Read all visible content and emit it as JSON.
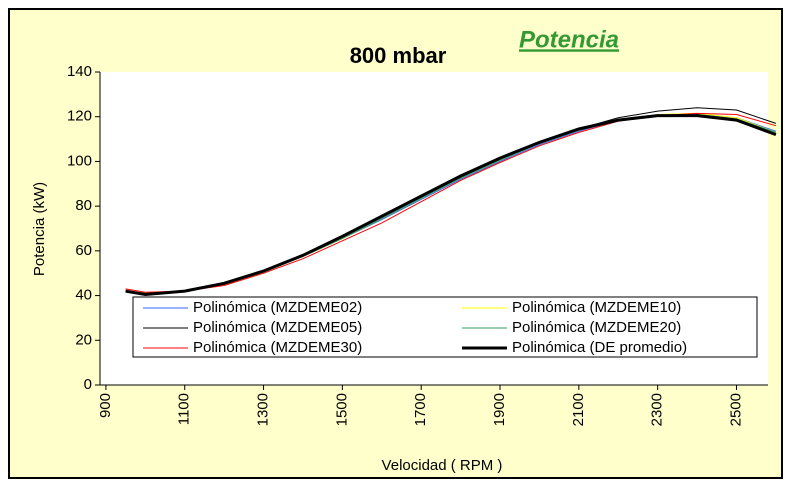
{
  "chart_data": {
    "type": "line",
    "title": "800 mbar",
    "annotation": "Potencia",
    "xlabel": "Velocidad ( RPM )",
    "ylabel": "Potencia (kW)",
    "x": [
      950,
      1000,
      1100,
      1200,
      1300,
      1400,
      1500,
      1600,
      1700,
      1800,
      1900,
      2000,
      2100,
      2200,
      2300,
      2400,
      2500,
      2600
    ],
    "series": [
      {
        "name": "Polinómica (MZDEME02)",
        "color": "#3366ff",
        "width": 1,
        "values": [
          42,
          41,
          42,
          45,
          50.5,
          57.5,
          65.5,
          74,
          83,
          92,
          100,
          107.5,
          113.5,
          118.5,
          121,
          121,
          119.5,
          113.5
        ]
      },
      {
        "name": "Polinómica (MZDEME10)",
        "color": "#ffff00",
        "width": 1,
        "values": [
          42,
          41,
          42,
          45,
          50.5,
          57.5,
          65.5,
          74.5,
          83.5,
          92.5,
          100.5,
          108,
          114,
          118.5,
          121,
          121.5,
          119.5,
          113
        ]
      },
      {
        "name": "Polinómica (MZDEME05)",
        "color": "#000000",
        "width": 1,
        "values": [
          42,
          40.5,
          42,
          45.5,
          51,
          58,
          66,
          75,
          84,
          93,
          101,
          108.5,
          114.5,
          119.5,
          122.5,
          124,
          123,
          117
        ]
      },
      {
        "name": "Polinómica (MZDEME20)",
        "color": "#339966",
        "width": 1,
        "values": [
          42,
          41,
          42,
          45,
          50.5,
          57.5,
          65.5,
          74.5,
          83.5,
          92.5,
          100.5,
          108,
          114,
          118.5,
          120.5,
          121,
          119,
          113
        ]
      },
      {
        "name": "Polinómica (MZDEME30)",
        "color": "#ff0000",
        "width": 1,
        "values": [
          43,
          41.5,
          42,
          44.5,
          50,
          56.5,
          64.5,
          72.5,
          82,
          91.5,
          99.5,
          107,
          113,
          118,
          120.5,
          121.5,
          121,
          116
        ]
      },
      {
        "name": "Polinómica (DE promedio)",
        "color": "#000000",
        "width": 3,
        "values": [
          42,
          40.5,
          42,
          45.5,
          51,
          58,
          66.5,
          75.5,
          84.5,
          93.5,
          101.5,
          108.5,
          114.5,
          118.5,
          120.5,
          120.5,
          118.5,
          112
        ]
      }
    ],
    "xlim": [
      885,
      2580
    ],
    "xticks": [
      900,
      1100,
      1300,
      1500,
      1700,
      1900,
      2100,
      2300,
      2500
    ],
    "ylim": [
      0,
      140
    ],
    "yticks": [
      0,
      20,
      40,
      60,
      80,
      100,
      120,
      140
    ],
    "grid": false,
    "legend": "bottom"
  }
}
